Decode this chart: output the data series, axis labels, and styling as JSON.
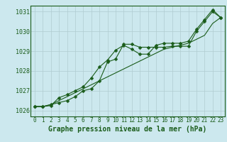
{
  "xlabel": "Graphe pression niveau de la mer (hPa)",
  "ylabel": "",
  "bg_color": "#cce8ee",
  "line_color": "#1a5c1a",
  "grid_color": "#b0ccd0",
  "xlim": [
    -0.5,
    23.5
  ],
  "ylim": [
    1025.7,
    1031.3
  ],
  "yticks": [
    1026,
    1027,
    1028,
    1029,
    1030,
    1031
  ],
  "xticks": [
    0,
    1,
    2,
    3,
    4,
    5,
    6,
    7,
    8,
    9,
    10,
    11,
    12,
    13,
    14,
    15,
    16,
    17,
    18,
    19,
    20,
    21,
    22,
    23
  ],
  "line1": [
    1026.2,
    1026.2,
    1026.3,
    1026.4,
    1026.5,
    1026.7,
    1027.0,
    1027.1,
    1027.5,
    1028.45,
    1028.6,
    1029.35,
    1029.35,
    1029.2,
    1029.2,
    1029.2,
    1029.2,
    1029.25,
    1029.25,
    1029.25,
    1030.0,
    1030.5,
    1031.0,
    1030.7
  ],
  "line2": [
    1026.2,
    1026.2,
    1026.25,
    1026.65,
    1026.8,
    1027.0,
    1027.2,
    1027.65,
    1028.2,
    1028.55,
    1029.05,
    1029.3,
    1029.1,
    1028.85,
    1028.85,
    1029.3,
    1029.4,
    1029.4,
    1029.4,
    1029.5,
    1030.1,
    1030.6,
    1031.1,
    1030.7
  ],
  "line3": [
    1026.2,
    1026.2,
    1026.3,
    1026.5,
    1026.7,
    1026.9,
    1027.1,
    1027.3,
    1027.5,
    1027.7,
    1027.9,
    1028.1,
    1028.3,
    1028.5,
    1028.7,
    1028.9,
    1029.1,
    1029.2,
    1029.3,
    1029.4,
    1029.6,
    1029.8,
    1030.4,
    1030.7
  ],
  "marker_size": 2.5,
  "linewidth": 0.8,
  "xlabel_fontsize": 7,
  "ytick_fontsize": 6,
  "xtick_fontsize": 5.5
}
